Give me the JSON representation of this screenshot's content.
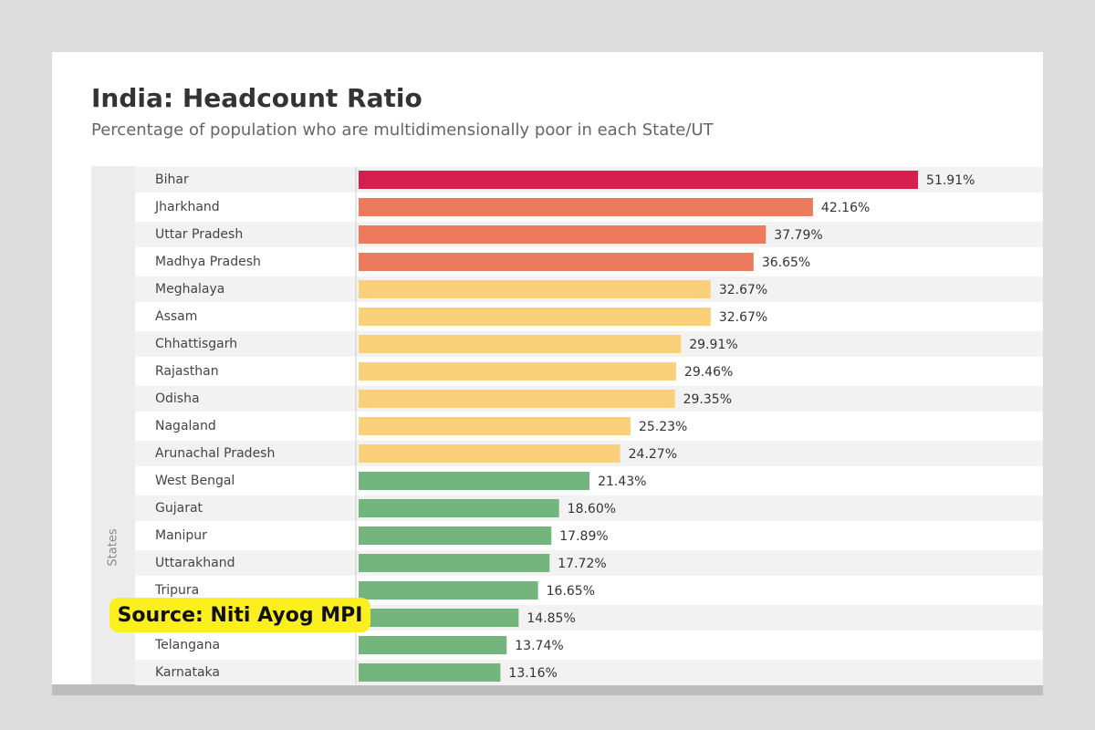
{
  "chart_data": {
    "type": "hbar",
    "title": "India: Headcount Ratio",
    "subtitle": "Percentage of population who are multidimensionally poor in each State/UT",
    "y_label": "States",
    "annotation": "Source: Niti Ayog MPI",
    "categories": [
      "Bihar",
      "Jharkhand",
      "Uttar Pradesh",
      "Madhya Pradesh",
      "Meghalaya",
      "Assam",
      "Chhattisgarh",
      "Rajasthan",
      "Odisha",
      "Nagaland",
      "Arunachal Pradesh",
      "West Bengal",
      "Gujarat",
      "Manipur",
      "Uttarakhand",
      "Tripura",
      null,
      "Telangana",
      "Karnataka"
    ],
    "values": [
      51.91,
      42.16,
      37.79,
      36.65,
      32.67,
      32.67,
      29.91,
      29.46,
      29.35,
      25.23,
      24.27,
      21.43,
      18.6,
      17.89,
      17.72,
      16.65,
      14.85,
      13.74,
      13.16
    ],
    "value_labels": [
      "51.91%",
      "42.16%",
      "37.79%",
      "36.65%",
      "32.67%",
      "32.67%",
      "29.91%",
      "29.46%",
      "29.35%",
      "25.23%",
      "24.27%",
      "21.43%",
      "18.60%",
      "17.89%",
      "17.72%",
      "16.65%",
      "14.85%",
      "13.74%",
      "13.16%"
    ],
    "colors": [
      "#d61f4f",
      "#ec7a5c",
      "#ec7a5c",
      "#ec7a5c",
      "#fbd07a",
      "#fbd07a",
      "#fbd07a",
      "#fbd07a",
      "#fbd07a",
      "#fbd07a",
      "#fbd07a",
      "#73b57c",
      "#73b57c",
      "#73b57c",
      "#73b57c",
      "#73b57c",
      "#73b57c",
      "#73b57c",
      "#73b57c"
    ]
  }
}
